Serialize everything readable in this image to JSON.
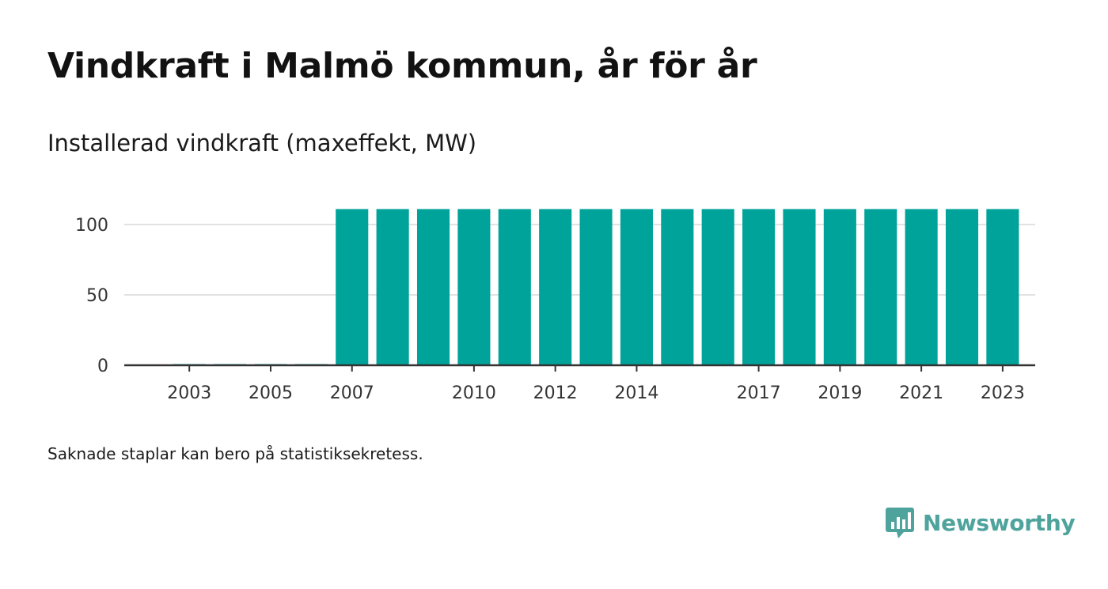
{
  "title": "Vindkraft i Malmö kommun, år för år",
  "subtitle": "Installerad vindkraft (maxeffekt, MW)",
  "note": "Saknade staplar kan bero på statistiksekretess.",
  "brand": {
    "name": "Newsworthy",
    "icon": "newsworthy-logo-icon",
    "color": "#4ea39d"
  },
  "chart_data": {
    "type": "bar",
    "bar_color": "#00a39a",
    "grid": true,
    "ylim": [
      0,
      112
    ],
    "yticks": [
      "0",
      "50",
      "100"
    ],
    "xticks": [
      "2003",
      "2005",
      "2007",
      "2010",
      "2012",
      "2014",
      "2017",
      "2019",
      "2021",
      "2023"
    ],
    "categories": [
      "2002",
      "2003",
      "2004",
      "2005",
      "2006",
      "2007",
      "2008",
      "2009",
      "2010",
      "2011",
      "2012",
      "2013",
      "2014",
      "2015",
      "2016",
      "2017",
      "2018",
      "2019",
      "2020",
      "2021",
      "2022",
      "2023"
    ],
    "values": [
      null,
      0.5,
      0.5,
      0.5,
      0.5,
      111,
      111,
      111,
      111,
      111,
      111,
      111,
      111,
      111,
      111,
      111,
      111,
      111,
      111,
      111,
      111,
      111
    ]
  }
}
